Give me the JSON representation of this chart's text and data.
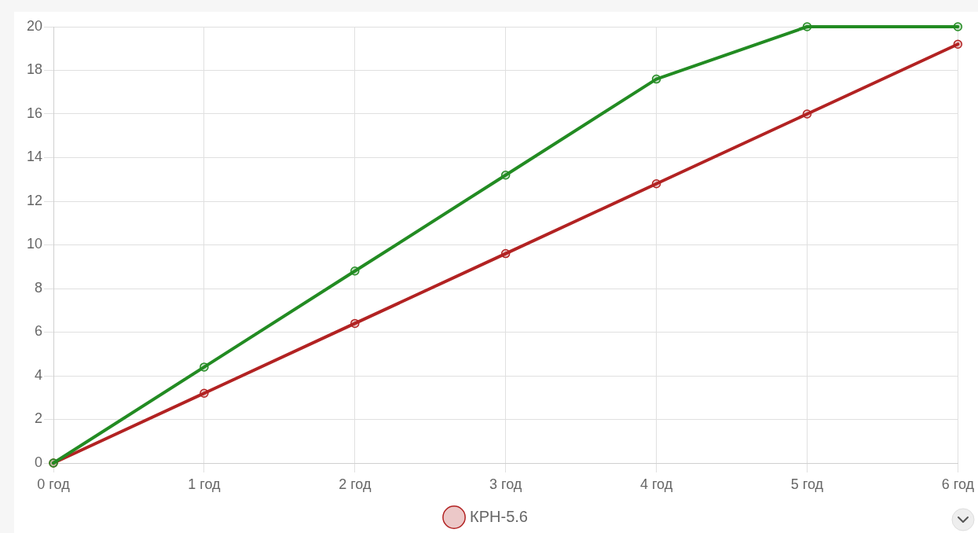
{
  "chart_data": {
    "type": "line",
    "categories": [
      "0 год",
      "1 год",
      "2 год",
      "3 год",
      "4 год",
      "5 год",
      "6 год"
    ],
    "series": [
      {
        "color": "#228b22",
        "values": [
          0,
          4.4,
          8.8,
          13.2,
          17.6,
          20,
          20
        ]
      },
      {
        "name": "КРН-5.6",
        "color": "#b22222",
        "values": [
          0,
          3.2,
          6.4,
          9.6,
          12.8,
          16,
          19.2
        ]
      }
    ],
    "ylim": [
      0,
      20
    ],
    "yticks": [
      0,
      2,
      4,
      6,
      8,
      10,
      12,
      14,
      16,
      18,
      20
    ],
    "grid": true,
    "legend": "bottom",
    "marker": "circle",
    "line_style": "solid"
  }
}
